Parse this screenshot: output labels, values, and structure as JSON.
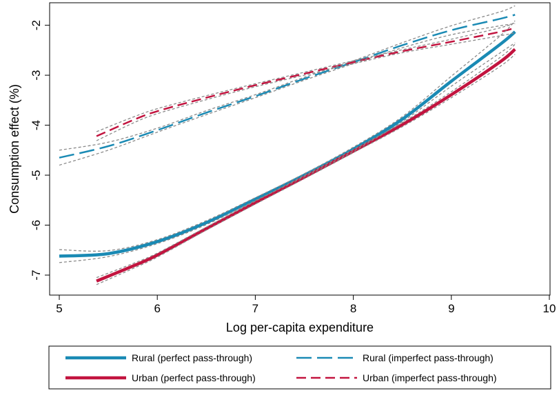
{
  "chart_data": {
    "type": "line",
    "title": "",
    "xlabel": "Log per-capita expenditure",
    "ylabel": "Consumption effect (%)",
    "xlim": [
      5,
      10
    ],
    "ylim": [
      -7.4,
      -1.55
    ],
    "xticks": [
      5,
      6,
      7,
      8,
      9,
      10
    ],
    "yticks": [
      -7,
      -6,
      -5,
      -4,
      -3,
      -2
    ],
    "grid": false,
    "legend_position": "bottom",
    "ci_color": "#8a8a8a",
    "series": [
      {
        "name": "Rural (perfect pass-through)",
        "style": "solid-thick",
        "color": "#1a8ab4",
        "x": [
          5.0,
          5.5,
          6.0,
          6.5,
          7.0,
          7.5,
          8.0,
          8.5,
          9.0,
          9.5,
          9.65
        ],
        "y": [
          -6.62,
          -6.57,
          -6.33,
          -5.95,
          -5.48,
          -5.0,
          -4.48,
          -3.88,
          -3.12,
          -2.38,
          -2.13
        ],
        "ci_lower": [
          -6.75,
          -6.63,
          -6.37,
          -5.99,
          -5.51,
          -5.03,
          -4.52,
          -3.93,
          -3.22,
          -2.55,
          -2.35
        ],
        "ci_upper": [
          -6.49,
          -6.51,
          -6.29,
          -5.91,
          -5.45,
          -4.97,
          -4.44,
          -3.83,
          -3.02,
          -2.21,
          -1.91
        ]
      },
      {
        "name": "Urban (perfect pass-through)",
        "style": "solid-thick",
        "color": "#c2143f",
        "x": [
          5.38,
          5.75,
          6.0,
          6.5,
          7.0,
          7.5,
          8.0,
          8.5,
          9.0,
          9.5,
          9.65
        ],
        "y": [
          -7.12,
          -6.82,
          -6.6,
          -6.07,
          -5.55,
          -5.04,
          -4.52,
          -3.99,
          -3.39,
          -2.73,
          -2.48
        ],
        "ci_lower": [
          -7.19,
          -6.87,
          -6.64,
          -6.1,
          -5.58,
          -5.07,
          -4.55,
          -4.03,
          -3.45,
          -2.82,
          -2.58
        ],
        "ci_upper": [
          -7.05,
          -6.77,
          -6.56,
          -6.04,
          -5.52,
          -5.01,
          -4.49,
          -3.95,
          -3.33,
          -2.64,
          -2.38
        ]
      },
      {
        "name": "Rural (imperfect pass-through)",
        "style": "dashed-long",
        "color": "#1a8ab4",
        "x": [
          5.0,
          5.5,
          6.0,
          6.5,
          7.0,
          7.5,
          8.0,
          8.5,
          9.0,
          9.5,
          9.65
        ],
        "y": [
          -4.65,
          -4.42,
          -4.1,
          -3.75,
          -3.42,
          -3.07,
          -2.74,
          -2.4,
          -2.1,
          -1.87,
          -1.79
        ],
        "ci_lower": [
          -4.8,
          -4.5,
          -4.14,
          -3.79,
          -3.45,
          -3.1,
          -2.77,
          -2.45,
          -2.19,
          -2.01,
          -1.97
        ],
        "ci_upper": [
          -4.5,
          -4.34,
          -4.06,
          -3.71,
          -3.39,
          -3.04,
          -2.71,
          -2.35,
          -2.01,
          -1.73,
          -1.61
        ]
      },
      {
        "name": "Urban (imperfect pass-through)",
        "style": "dashed",
        "color": "#c2143f",
        "x": [
          5.38,
          5.75,
          6.0,
          6.5,
          7.0,
          7.5,
          8.0,
          8.5,
          9.0,
          9.5,
          9.65
        ],
        "y": [
          -4.22,
          -3.9,
          -3.72,
          -3.45,
          -3.2,
          -2.97,
          -2.74,
          -2.52,
          -2.33,
          -2.13,
          -2.05
        ],
        "ci_lower": [
          -4.31,
          -3.96,
          -3.77,
          -3.49,
          -3.23,
          -3.0,
          -2.77,
          -2.55,
          -2.38,
          -2.21,
          -2.15
        ],
        "ci_upper": [
          -4.13,
          -3.84,
          -3.67,
          -3.41,
          -3.17,
          -2.94,
          -2.71,
          -2.49,
          -2.28,
          -2.05,
          -1.95
        ]
      }
    ]
  }
}
